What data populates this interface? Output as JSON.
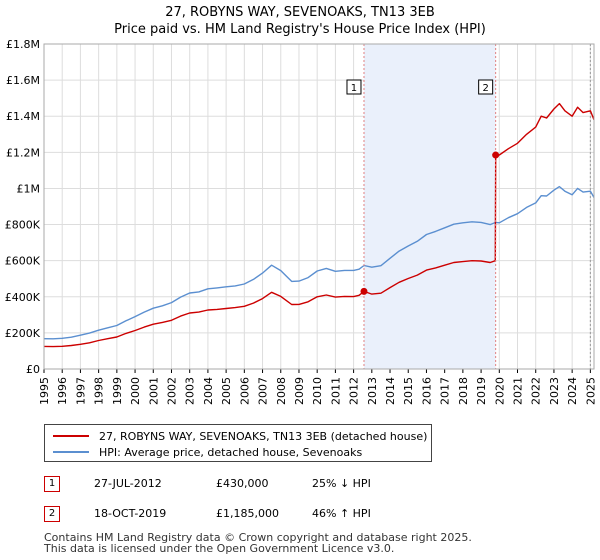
{
  "chart_data": {
    "type": "line",
    "title": "27, ROBYNS WAY, SEVENOAKS, TN13 3EB",
    "subtitle": "Price paid vs. HM Land Registry's House Price Index (HPI)",
    "xlim": [
      1995,
      2025.2
    ],
    "ylim": [
      0,
      1800000
    ],
    "y_ticks": [
      {
        "value": 0,
        "label": "£0"
      },
      {
        "value": 200000,
        "label": "£200K"
      },
      {
        "value": 400000,
        "label": "£400K"
      },
      {
        "value": 600000,
        "label": "£600K"
      },
      {
        "value": 800000,
        "label": "£800K"
      },
      {
        "value": 1000000,
        "label": "£1M"
      },
      {
        "value": 1200000,
        "label": "£1.2M"
      },
      {
        "value": 1400000,
        "label": "£1.4M"
      },
      {
        "value": 1600000,
        "label": "£1.6M"
      },
      {
        "value": 1800000,
        "label": "£1.8M"
      }
    ],
    "x_ticks": [
      "1995",
      "1996",
      "1997",
      "1998",
      "1999",
      "2000",
      "2001",
      "2002",
      "2003",
      "2004",
      "2005",
      "2006",
      "2007",
      "2008",
      "2009",
      "2010",
      "2011",
      "2012",
      "2013",
      "2014",
      "2015",
      "2016",
      "2017",
      "2018",
      "2019",
      "2020",
      "2021",
      "2022",
      "2023",
      "2024",
      "2025"
    ],
    "shaded_region": [
      2012.57,
      2019.8
    ],
    "series": [
      {
        "name": "27, ROBYNS WAY, SEVENOAKS, TN13 3EB (detached house)",
        "color": "#cc0000",
        "x": [
          1995,
          1995.5,
          1996,
          1996.5,
          1997,
          1997.5,
          1998,
          1998.5,
          1999,
          1999.5,
          2000,
          2000.5,
          2001,
          2001.5,
          2002,
          2002.5,
          2003,
          2003.5,
          2004,
          2004.5,
          2005,
          2005.5,
          2006,
          2006.5,
          2007,
          2007.5,
          2008,
          2008.3,
          2008.6,
          2009,
          2009.5,
          2010,
          2010.5,
          2011,
          2011.5,
          2012,
          2012.3,
          2012.57,
          2013,
          2013.5,
          2014,
          2014.5,
          2015,
          2015.5,
          2016,
          2016.5,
          2017,
          2017.5,
          2018,
          2018.5,
          2019,
          2019.5,
          2019.78,
          2019.8,
          2020,
          2020.5,
          2021,
          2021.5,
          2022,
          2022.3,
          2022.6,
          2023,
          2023.3,
          2023.6,
          2024,
          2024.3,
          2024.6,
          2025,
          2025.2
        ],
        "values": [
          125000,
          124000,
          126000,
          130000,
          137000,
          145000,
          158000,
          168000,
          177000,
          197000,
          213000,
          232000,
          248000,
          258000,
          270000,
          293000,
          310000,
          315000,
          327000,
          330000,
          335000,
          340000,
          347000,
          365000,
          390000,
          425000,
          402000,
          380000,
          357000,
          358000,
          372000,
          400000,
          410000,
          398000,
          402000,
          401000,
          408000,
          430000,
          415000,
          420000,
          451000,
          480000,
          501000,
          520000,
          548000,
          560000,
          575000,
          590000,
          595000,
          600000,
          598000,
          590000,
          600000,
          1185000,
          1185000,
          1220000,
          1250000,
          1300000,
          1340000,
          1400000,
          1390000,
          1440000,
          1470000,
          1430000,
          1400000,
          1450000,
          1420000,
          1430000,
          1380000
        ]
      },
      {
        "name": "HPI: Average price, detached house, Sevenoaks",
        "color": "#5b8fd0",
        "x": [
          1995,
          1995.5,
          1996,
          1996.5,
          1997,
          1997.5,
          1998,
          1998.5,
          1999,
          1999.5,
          2000,
          2000.5,
          2001,
          2001.5,
          2002,
          2002.5,
          2003,
          2003.5,
          2004,
          2004.5,
          2005,
          2005.5,
          2006,
          2006.5,
          2007,
          2007.5,
          2008,
          2008.3,
          2008.6,
          2009,
          2009.5,
          2010,
          2010.5,
          2011,
          2011.5,
          2012,
          2012.3,
          2012.57,
          2013,
          2013.5,
          2014,
          2014.5,
          2015,
          2015.5,
          2016,
          2016.5,
          2017,
          2017.5,
          2018,
          2018.5,
          2019,
          2019.5,
          2019.8,
          2020,
          2020.5,
          2021,
          2021.5,
          2022,
          2022.3,
          2022.6,
          2023,
          2023.3,
          2023.6,
          2024,
          2024.3,
          2024.6,
          2025,
          2025.2
        ],
        "values": [
          168000,
          167000,
          170000,
          176000,
          187000,
          199000,
          215000,
          228000,
          241000,
          267000,
          290000,
          315000,
          337000,
          350000,
          368000,
          398000,
          421000,
          427000,
          444000,
          449000,
          455000,
          460000,
          471000,
          496000,
          531000,
          575000,
          545000,
          515000,
          485000,
          487000,
          506000,
          543000,
          557000,
          541000,
          546000,
          546000,
          553000,
          573000,
          564000,
          572000,
          613000,
          653000,
          681000,
          707000,
          745000,
          762000,
          782000,
          802000,
          810000,
          815000,
          812000,
          800000,
          812000,
          810000,
          838000,
          860000,
          895000,
          920000,
          960000,
          958000,
          990000,
          1010000,
          985000,
          965000,
          1000000,
          980000,
          985000,
          950000
        ]
      }
    ],
    "annotations": [
      {
        "label": "1",
        "x": 2012.57,
        "value": 430000
      },
      {
        "label": "2",
        "x": 2019.8,
        "value": 1185000
      }
    ]
  },
  "legend": {
    "series1": "27, ROBYNS WAY, SEVENOAKS, TN13 3EB (detached house)",
    "series2": "HPI: Average price, detached house, Sevenoaks"
  },
  "transactions": [
    {
      "num": "1",
      "date": "27-JUL-2012",
      "price": "£430,000",
      "change": "25% ↓ HPI"
    },
    {
      "num": "2",
      "date": "18-OCT-2019",
      "price": "£1,185,000",
      "change": "46% ↑ HPI"
    }
  ],
  "footer": {
    "line1": "Contains HM Land Registry data © Crown copyright and database right 2025.",
    "line2": "This data is licensed under the Open Government Licence v3.0."
  }
}
